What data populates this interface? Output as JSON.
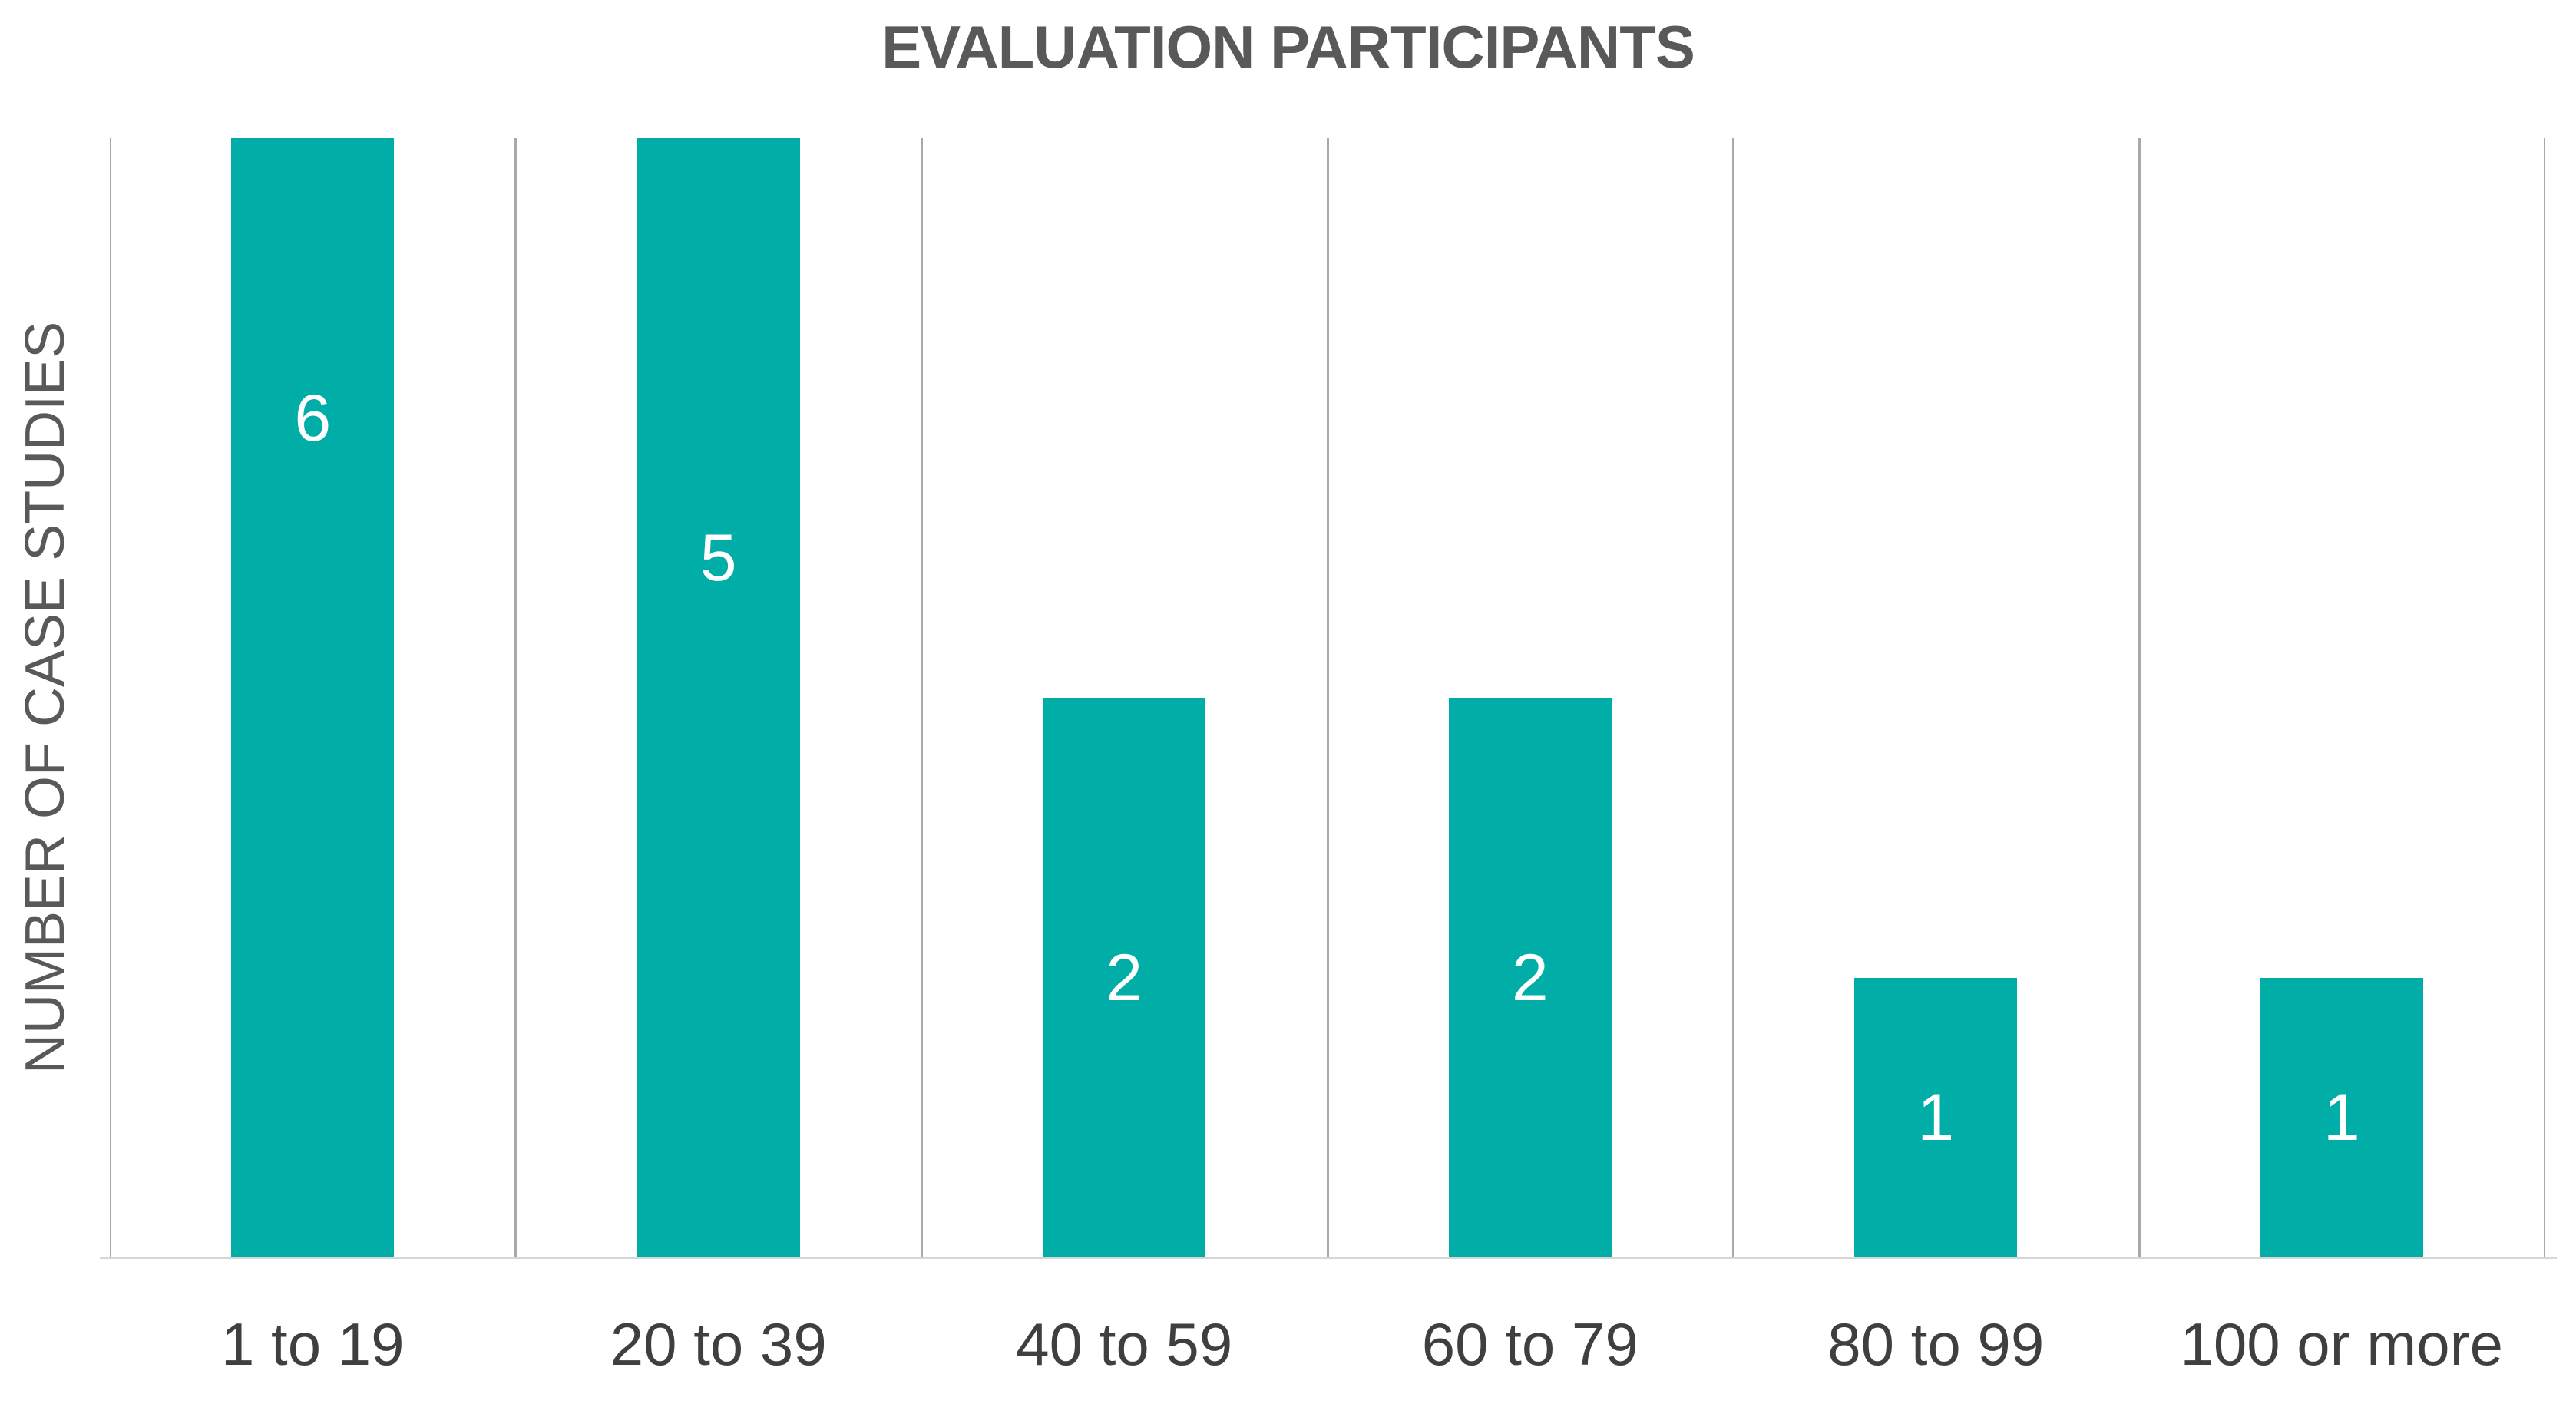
{
  "title": "EVALUATION PARTICIPANTS",
  "colors": {
    "bar_teal": "#00ada7",
    "title_gray": "#595959",
    "axis_text_gray": "#3f3f3f",
    "gridline_gray": "#a9a9a9",
    "axis_line_gray": "#d6d6d6",
    "data_label_white": "#ffffff",
    "background": "#ffffff"
  },
  "chart_data": {
    "type": "bar",
    "title": "EVALUATION PARTICIPANTS",
    "xlabel": "",
    "ylabel": "NUMBER OF CASE STUDIES",
    "categories": [
      "1 to 19",
      "20 to 39",
      "40 to 59",
      "60 to 79",
      "80 to 99",
      "100 or more"
    ],
    "values": [
      6,
      5,
      2,
      2,
      1,
      1
    ],
    "data_labels": [
      6,
      5,
      2,
      2,
      1,
      1
    ],
    "ylim": [
      0,
      4
    ],
    "y_ticks_visible": false,
    "grid": "vertical category-boundary gridlines only, no horizontal gridlines",
    "legend": "none",
    "bar_color": "#00ada7",
    "note": "plot clips at y-max 4, so bars with values 6 and 5 are cut off at the top of the plot area; white value labels sit at the center of each (unclipped) bar height"
  }
}
